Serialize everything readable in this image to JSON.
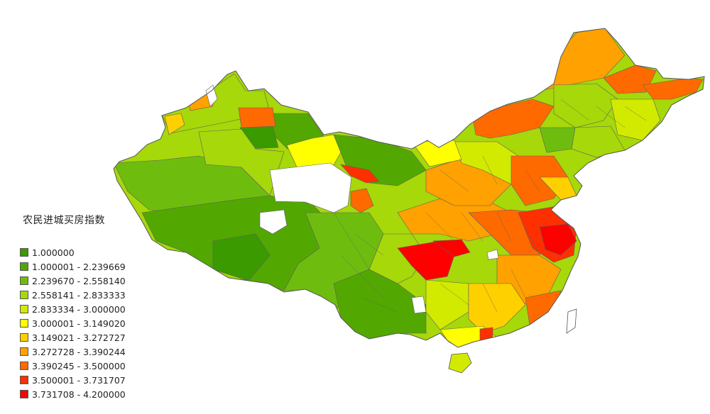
{
  "legend": {
    "title": "农民进城买房指数",
    "classes": [
      {
        "label": "1.000000",
        "color": "#3a9a00"
      },
      {
        "label": "1.000001 - 2.239669",
        "color": "#52a800"
      },
      {
        "label": "2.239670 - 2.558140",
        "color": "#6ebd0e"
      },
      {
        "label": "2.558141 - 2.833333",
        "color": "#a6d80a"
      },
      {
        "label": "2.833334 - 3.000000",
        "color": "#d2ea00"
      },
      {
        "label": "3.000001 - 3.149020",
        "color": "#ffff00"
      },
      {
        "label": "3.149021 - 3.272727",
        "color": "#ffd000"
      },
      {
        "label": "3.272728 - 3.390244",
        "color": "#ffa100"
      },
      {
        "label": "3.390245 - 3.500000",
        "color": "#ff6a00"
      },
      {
        "label": "3.500001 - 3.731707",
        "color": "#ff3000"
      },
      {
        "label": "3.731708 - 4.200000",
        "color": "#ff0000"
      }
    ]
  }
}
